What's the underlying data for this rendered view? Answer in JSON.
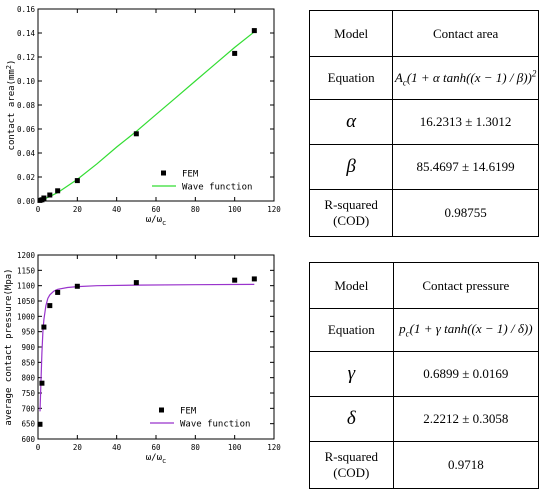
{
  "chart_data": [
    {
      "type": "scatter",
      "xlabel": "ω/ω",
      "xlabel_sub": "c",
      "ylabel": "contact area(mm",
      "ylabel_sup": "2",
      "ylabel_end": ")",
      "xlim": [
        0,
        120
      ],
      "ylim": [
        0,
        0.16
      ],
      "xticks": [
        "0",
        "20",
        "40",
        "60",
        "80",
        "100",
        "120"
      ],
      "yticks": [
        "0.00",
        "0.02",
        "0.04",
        "0.06",
        "0.08",
        "0.10",
        "0.12",
        "0.14",
        "0.16"
      ],
      "legend_position": "lower-right",
      "series": [
        {
          "name": "FEM",
          "kind": "markers",
          "color": "#000000",
          "x": [
            1,
            2,
            3,
            6,
            10,
            20,
            50,
            100,
            110
          ],
          "y": [
            0.0005,
            0.001,
            0.0025,
            0.005,
            0.0085,
            0.017,
            0.056,
            0.123,
            0.142
          ]
        },
        {
          "name": "Wave function",
          "kind": "line",
          "color": "#33dd33",
          "x": [
            1,
            5,
            10,
            20,
            30,
            40,
            50,
            60,
            70,
            80,
            90,
            100,
            110
          ],
          "y": [
            0.0005,
            0.003,
            0.007,
            0.018,
            0.031,
            0.045,
            0.058,
            0.072,
            0.086,
            0.1,
            0.114,
            0.128,
            0.141
          ]
        }
      ]
    },
    {
      "type": "scatter",
      "xlabel": "ω/ω",
      "xlabel_sub": "c",
      "ylabel": "average contact pressure(Mpa)",
      "xlim": [
        0,
        120
      ],
      "ylim": [
        600,
        1200
      ],
      "xticks": [
        "0",
        "20",
        "40",
        "60",
        "80",
        "100",
        "120"
      ],
      "yticks": [
        "600",
        "650",
        "700",
        "750",
        "800",
        "850",
        "900",
        "950",
        "1000",
        "1050",
        "1100",
        "1150",
        "1200"
      ],
      "legend_position": "lower-right",
      "series": [
        {
          "name": "FEM",
          "kind": "markers",
          "color": "#000000",
          "x": [
            1,
            2,
            3,
            6,
            10,
            20,
            50,
            100,
            110
          ],
          "y": [
            648,
            782,
            965,
            1035,
            1078,
            1098,
            1110,
            1118,
            1122
          ]
        },
        {
          "name": "Wave function",
          "kind": "line",
          "color": "#9933cc",
          "x": [
            1,
            1.5,
            2,
            2.5,
            3,
            4,
            5,
            6,
            8,
            10,
            15,
            20,
            30,
            50,
            80,
            110
          ],
          "y": [
            690,
            790,
            880,
            950,
            990,
            1035,
            1058,
            1070,
            1082,
            1088,
            1094,
            1097,
            1100,
            1102,
            1103,
            1104
          ]
        }
      ]
    }
  ],
  "table_top": {
    "header": [
      "Model",
      "Contact area"
    ],
    "equation_label": "Equation",
    "equation": {
      "a": "A",
      "a_sub": "c",
      "body": "(1 + α tanh((x − 1) / β))",
      "sup": "2"
    },
    "params": [
      {
        "symbol": "α",
        "value": "16.2313 ± 1.3012"
      },
      {
        "symbol": "β",
        "value": "85.4697 ± 14.6199"
      }
    ],
    "rsq_label_1": "R-squared",
    "rsq_label_2": "(COD)",
    "rsq_value": "0.98755"
  },
  "table_bottom": {
    "header": [
      "Model",
      "Contact pressure"
    ],
    "equation_label": "Equation",
    "equation": {
      "a": "p",
      "a_sub": "c",
      "body": "(1 + γ tanh((x − 1) / δ))"
    },
    "params": [
      {
        "symbol": "γ",
        "value": "0.6899 ± 0.0169"
      },
      {
        "symbol": "δ",
        "value": "2.2212 ± 0.3058"
      }
    ],
    "rsq_label_1": "R-squared",
    "rsq_label_2": "(COD)",
    "rsq_value": "0.9718"
  }
}
